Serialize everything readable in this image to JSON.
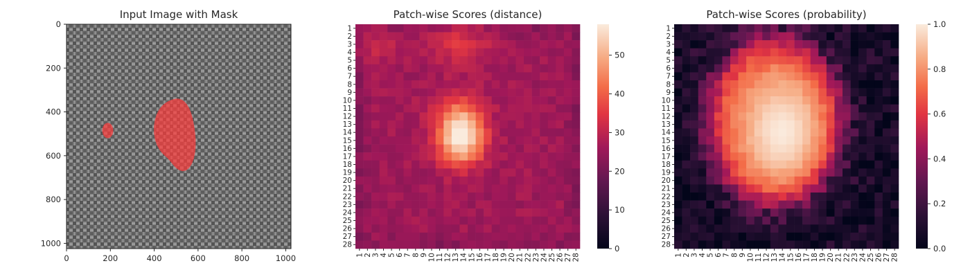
{
  "chart_data": [
    {
      "type": "image",
      "title": "Input Image with Mask",
      "x_ticks": [
        "0",
        "200",
        "400",
        "600",
        "800",
        "1000"
      ],
      "y_ticks": [
        "0",
        "200",
        "400",
        "600",
        "800",
        "1000"
      ],
      "xlim": [
        0,
        1024
      ],
      "ylim": [
        1024,
        0
      ],
      "mask_color": "#ff3b3b",
      "mask_regions": [
        {
          "name": "small-defect",
          "cx": 188,
          "cy": 485,
          "rx": 25,
          "ry": 35
        },
        {
          "name": "large-defect",
          "cx": 500,
          "cy": 498,
          "rx": 88,
          "ry": 170
        }
      ]
    },
    {
      "type": "heatmap",
      "title": "Patch-wise Scores (distance)",
      "rows": 28,
      "cols": 28,
      "colormap": "rocket",
      "vmin": 0,
      "vmax": 58,
      "colorbar_ticks": [
        "0",
        "10",
        "20",
        "30",
        "40",
        "50"
      ],
      "tick_labels": [
        "1",
        "2",
        "3",
        "4",
        "5",
        "6",
        "7",
        "8",
        "9",
        "10",
        "11",
        "12",
        "13",
        "14",
        "15",
        "16",
        "17",
        "18",
        "19",
        "20",
        "21",
        "22",
        "23",
        "24",
        "25",
        "26",
        "27",
        "28"
      ],
      "baseline": 26,
      "hotspots": [
        {
          "row": 14.8,
          "col": 13.7,
          "peak": 58,
          "sx": 2.0,
          "sy": 2.3
        },
        {
          "row": 11.5,
          "col": 13.2,
          "peak": 10,
          "sx": 2.2,
          "sy": 2.0
        },
        {
          "row": 2.5,
          "col": 13.5,
          "peak": 8,
          "sx": 3.0,
          "sy": 2.0
        },
        {
          "row": 3.0,
          "col": 2.5,
          "peak": 6,
          "sx": 2.0,
          "sy": 2.0
        }
      ]
    },
    {
      "type": "heatmap",
      "title": "Patch-wise Scores (probability)",
      "rows": 28,
      "cols": 28,
      "colormap": "rocket",
      "vmin": 0,
      "vmax": 1,
      "colorbar_ticks": [
        "0.0",
        "0.2",
        "0.4",
        "0.6",
        "0.8",
        "1.0"
      ],
      "tick_labels": [
        "1",
        "2",
        "3",
        "4",
        "5",
        "6",
        "7",
        "8",
        "9",
        "10",
        "11",
        "12",
        "13",
        "14",
        "15",
        "16",
        "17",
        "18",
        "19",
        "20",
        "21",
        "22",
        "23",
        "24",
        "25",
        "26",
        "27",
        "28"
      ],
      "blob": {
        "row": 12.5,
        "col": 13.0,
        "rx": 9.0,
        "ry": 11.5
      },
      "peak": {
        "row": 14.0,
        "col": 14.0,
        "rx": 4.5,
        "ry": 6.0
      }
    }
  ]
}
